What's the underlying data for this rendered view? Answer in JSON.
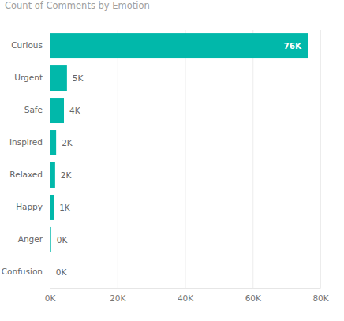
{
  "chart_data": {
    "type": "bar",
    "title": "Count of Comments by Emotion",
    "orientation": "horizontal",
    "categories": [
      "Curious",
      "Urgent",
      "Safe",
      "Inspired",
      "Relaxed",
      "Happy",
      "Anger",
      "Confusion"
    ],
    "values": [
      76300,
      5100,
      4200,
      1900,
      1600,
      1200,
      400,
      200
    ],
    "value_labels": [
      "76K",
      "5K",
      "4K",
      "2K",
      "2K",
      "1K",
      "0K",
      "0K"
    ],
    "data_labels": true,
    "color": "#01b8aa",
    "xlim": [
      0,
      80000
    ],
    "xticks": [
      {
        "value": 0,
        "label": "0K"
      },
      {
        "value": 20000,
        "label": "20K"
      },
      {
        "value": 40000,
        "label": "40K"
      },
      {
        "value": 60000,
        "label": "60K"
      },
      {
        "value": 80000,
        "label": "80K"
      }
    ],
    "grid": true
  }
}
